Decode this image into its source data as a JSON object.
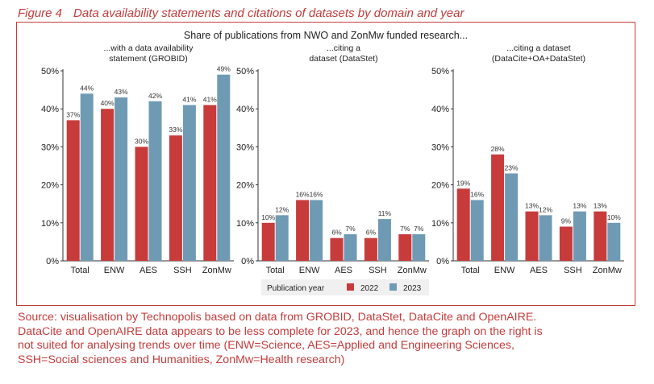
{
  "figure": {
    "number": "Figure 4",
    "title": "Data availability statements and citations of datasets by domain and year"
  },
  "chart_data": {
    "type": "bar",
    "suptitle": "Share of publications from NWO and ZonMw funded research...",
    "categories": [
      "Total",
      "ENW",
      "AES",
      "SSH",
      "ZonMw"
    ],
    "yticks": [
      "0%",
      "10%",
      "20%",
      "30%",
      "40%",
      "50%"
    ],
    "ylim": [
      0,
      50
    ],
    "legend": {
      "title": "Publication year",
      "entries": [
        {
          "name": "2022",
          "color": "#c73b3b"
        },
        {
          "name": "2023",
          "color": "#6f9ab4"
        }
      ]
    },
    "panels": [
      {
        "title_line1": "...with a data availability",
        "title_line2": "statement (GROBID)",
        "series": [
          {
            "name": "2022",
            "values": [
              37,
              40,
              30,
              33,
              41
            ],
            "labels": [
              "37%",
              "40%",
              "30%",
              "33%",
              "41%"
            ]
          },
          {
            "name": "2023",
            "values": [
              44,
              43,
              42,
              41,
              49
            ],
            "labels": [
              "44%",
              "43%",
              "42%",
              "41%",
              "49%"
            ]
          }
        ]
      },
      {
        "title_line1": "...citing a",
        "title_line2": "dataset (DataStet)",
        "series": [
          {
            "name": "2022",
            "values": [
              10,
              16,
              6,
              6,
              7
            ],
            "labels": [
              "10%",
              "16%",
              "6%",
              "6%",
              "7%"
            ]
          },
          {
            "name": "2023",
            "values": [
              12,
              16,
              7,
              11,
              7
            ],
            "labels": [
              "12%",
              "16%",
              "7%",
              "11%",
              "7%"
            ]
          }
        ]
      },
      {
        "title_line1": "...citing a dataset",
        "title_line2": "(DataCite+OA+DataStet)",
        "series": [
          {
            "name": "2022",
            "values": [
              19,
              28,
              13,
              9,
              13
            ],
            "labels": [
              "19%",
              "28%",
              "13%",
              "9%",
              "13%"
            ]
          },
          {
            "name": "2023",
            "values": [
              16,
              23,
              12,
              13,
              10
            ],
            "labels": [
              "16%",
              "23%",
              "12%",
              "13%",
              "10%"
            ]
          }
        ]
      }
    ]
  },
  "caption": {
    "line1": "Source: visualisation by Technopolis based on data from GROBID, DataStet, DataCite and OpenAIRE.",
    "line2": "DataCite and OpenAIRE data appears to be less complete for 2023, and hence the graph on the right is",
    "line3": "not suited for analysing trends over time (ENW=Science, AES=Applied and Engineering Sciences,",
    "line4": "SSH=Social sciences and Humanities, ZonMw=Health research)"
  }
}
